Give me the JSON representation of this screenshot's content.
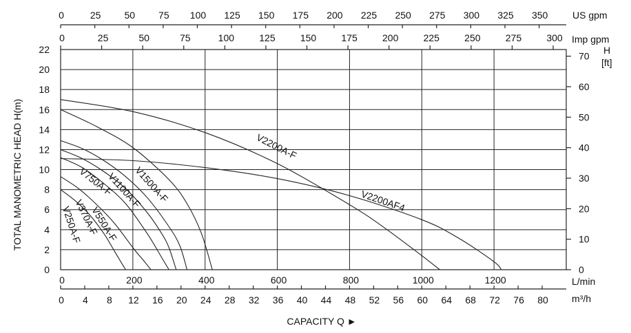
{
  "chart_data": {
    "type": "line",
    "title": "",
    "xlabel": "CAPACITY Q ►",
    "ylabel": "TOTAL MANOMETRIC HEAD  H(m)",
    "y_right_label": [
      "H",
      "[ft]"
    ],
    "xlim": [
      0,
      1400
    ],
    "ylim": [
      0,
      22
    ],
    "x_ticks_lmin": [
      "0",
      "200",
      "400",
      "600",
      "800",
      "1000",
      "1200"
    ],
    "x_unit_lmin": "L/min",
    "x_ticks_m3h": [
      "0",
      "4",
      "8",
      "12",
      "16",
      "20",
      "24",
      "28",
      "32",
      "36",
      "40",
      "44",
      "48",
      "52",
      "56",
      "60",
      "64",
      "68",
      "72",
      "76",
      "80"
    ],
    "x_unit_m3h": "m³/h",
    "x_ticks_usgpm": [
      "0",
      "25",
      "50",
      "75",
      "100",
      "125",
      "150",
      "175",
      "200",
      "225",
      "250",
      "275",
      "300",
      "325",
      "350"
    ],
    "x_unit_usgpm": "US gpm",
    "x_ticks_impgpm": [
      "0",
      "25",
      "50",
      "75",
      "100",
      "125",
      "150",
      "175",
      "200",
      "225",
      "250",
      "275",
      "300"
    ],
    "x_unit_impgpm": "Imp gpm",
    "y_ticks": [
      "0",
      "2",
      "4",
      "6",
      "8",
      "10",
      "12",
      "14",
      "16",
      "18",
      "20",
      "22"
    ],
    "y_ticks_ft": [
      "0",
      "10",
      "20",
      "30",
      "40",
      "50",
      "60",
      "70"
    ],
    "grid": true,
    "series": [
      {
        "name": "V250A-F",
        "x": [
          0,
          40,
          80,
          120,
          150,
          170,
          180
        ],
        "y": [
          8.0,
          6.9,
          5.5,
          3.6,
          1.8,
          0.6,
          0
        ]
      },
      {
        "name": "V370A-F",
        "x": [
          0,
          50,
          100,
          150,
          200,
          230,
          250
        ],
        "y": [
          9.3,
          8.1,
          6.5,
          4.6,
          2.2,
          0.9,
          0
        ]
      },
      {
        "name": "V550A-F",
        "x": [
          0,
          60,
          120,
          180,
          240,
          280,
          300
        ],
        "y": [
          11.2,
          10.2,
          8.6,
          6.6,
          3.6,
          1.2,
          0
        ]
      },
      {
        "name": "V750A-F",
        "x": [
          0,
          60,
          120,
          180,
          240,
          280,
          300,
          320
        ],
        "y": [
          12.0,
          11.1,
          9.8,
          8.1,
          5.7,
          3.6,
          2.2,
          0
        ]
      },
      {
        "name": "V1100A-F",
        "x": [
          0,
          60,
          120,
          180,
          240,
          300,
          330,
          350
        ],
        "y": [
          12.9,
          12.1,
          10.9,
          9.3,
          7.2,
          4.3,
          2.4,
          0
        ]
      },
      {
        "name": "V1500A-F",
        "x": [
          0,
          100,
          200,
          300,
          350,
          390,
          420
        ],
        "y": [
          16.0,
          14.3,
          12.2,
          9.0,
          6.6,
          3.6,
          0
        ]
      },
      {
        "name": "V2200A-F",
        "x": [
          0,
          200,
          400,
          600,
          800,
          900,
          1000,
          1050
        ],
        "y": [
          17.0,
          15.8,
          13.7,
          10.6,
          6.5,
          4.1,
          1.4,
          0
        ]
      },
      {
        "name": "V2200AF4",
        "x": [
          0,
          200,
          400,
          600,
          800,
          1000,
          1100,
          1200,
          1220
        ],
        "y": [
          11.1,
          10.9,
          10.2,
          9.1,
          7.4,
          5.0,
          3.2,
          0.8,
          0
        ]
      }
    ]
  }
}
